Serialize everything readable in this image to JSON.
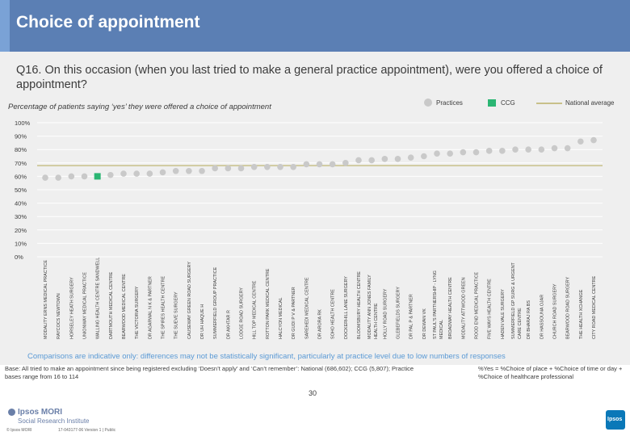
{
  "header": {
    "title": "Choice of appointment"
  },
  "question": "Q16. On this occasion (when you last tried to make a general practice appointment), were you offered a choice of appointment?",
  "chart_subtitle": "Percentage of patients saying ‘yes’ they were offered a choice of appointment",
  "colors": {
    "practices": "#c9c9c9",
    "ccg": "#2bb673",
    "national": "#c8c08a",
    "title_bar": "#5b7fb4",
    "note": "#5b9ad5"
  },
  "chart_data": {
    "type": "scatter",
    "legend": [
      {
        "label": "Practices",
        "icon": "grey-dot"
      },
      {
        "label": "CCG",
        "icon": "green-square"
      },
      {
        "label": "National average",
        "icon": "olive-line"
      }
    ],
    "legend_placement": "top-right",
    "ylim": [
      0,
      100
    ],
    "yticks": [
      "0%",
      "10%",
      "20%",
      "30%",
      "40%",
      "50%",
      "60%",
      "70%",
      "80%",
      "90%",
      "100%"
    ],
    "grid": true,
    "national_average": 68,
    "categories": [
      "MODALITY ERNS MEDICAL PRACTICE",
      "RAYCOCS NEWTOWN",
      "HORSELEY HEATH SURGERY",
      "UNIONWAY MEDICAL PRACTICE",
      "WALLING HEALTH CENTRE SANDWELL",
      "DARTMOUTH MEDICAL CENTRE",
      "BEARWOOD MEDICAL CENTRE",
      "THE VICTORIA SURGERY",
      "DR AGARWAL N K & PARTNER",
      "THE SPIRES HEALTH CENTRE",
      "THE SUEVE SURGERY",
      "CAUSEWAY GREEN ROAD SURGERY",
      "DR UH HAQUE H",
      "SUMMERFIELD GROUP PRACTICE",
      "DR AKHTAR R",
      "LODGE ROAD SURGERY",
      "HILL TOP MEDICAL CENTRE",
      "ROTTON PARK MEDICAL CENTRE",
      "HALCYON MEDICAL",
      "DR GUDI P V & PARTNER",
      "SAREHEDI MEDICAL CENTRE",
      "DR ARORA RK",
      "SOHO HEALTH CENTRE",
      "DOCKERHILL LANE SURGERY",
      "BLOOMSBURY HEALTH CENTRE",
      "MODALITY ANN JONES FAMILY HEALTH CENTRE",
      "HOLLY ROAD SURGERY",
      "GLEBEFIELDS SURGERY",
      "DR PAL P & PARTNER",
      "DR DEWAN VK",
      "ST PAUL'S PARTNERSHIP - LYNG MEDICAL",
      "BROADWAY HEALTH CENTRE",
      "MODALITY ATTWOOD GREEN",
      "ROOD END MEDICAL PRACTICE",
      "FIVE WAYS HEALTH CENTRE",
      "HADEN VALE SURGERY",
      "SUMMERFIELD GP SURG & URGENT CARE CENTRE",
      "DR BHARAJ RA BS",
      "DR HASSOUNA OJAR",
      "CHURCH ROAD SURGERY",
      "BEARWOOD ROAD SURGERY",
      "THE HEALTH XCHANGE",
      "CITY ROAD MEDICAL CENTRE"
    ],
    "ccg_index": 4,
    "values": [
      59,
      59,
      60,
      60,
      60,
      61,
      62,
      62,
      62,
      63,
      64,
      64,
      64,
      66,
      66,
      66,
      67,
      67,
      67,
      67,
      69,
      69,
      69,
      70,
      72,
      72,
      73,
      73,
      74,
      75,
      77,
      77,
      78,
      78,
      79,
      79,
      80,
      80,
      80,
      81,
      81,
      86,
      87
    ]
  },
  "note": "Comparisons are indicative only: differences may not be statistically significant, particularly at practice level due to low numbers of responses",
  "footer": {
    "base": "Base: All tried to make an appointment since being registered excluding ‘Doesn’t apply’ and ‘Can’t remember’: National (686,602); CCG (5,807); Practice bases range from 16 to 114",
    "formula": "%Yes = %Choice of place + %Choice of time or day + %Choice of healthcare professional",
    "logo_line1": "Ipsos MORI",
    "logo_line2": "Social Research Institute",
    "copyright": "© Ipsos MORI",
    "version": "17-043177-06 Version 1 | Public",
    "page_number": "30",
    "brand_mark": "Ipsos"
  }
}
